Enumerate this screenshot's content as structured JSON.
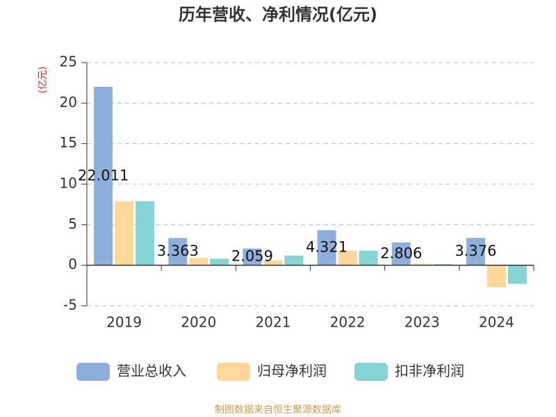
{
  "chart_data": {
    "type": "bar",
    "title": "历年营收、净利情况(亿元)",
    "y_label": "(亿元)",
    "categories": [
      "2019",
      "2020",
      "2021",
      "2022",
      "2023",
      "2024"
    ],
    "series": [
      {
        "name": "营业总收入",
        "color": "#8eaedb",
        "values": [
          22.011,
          3.363,
          2.059,
          4.321,
          2.806,
          3.376
        ],
        "show_labels": true
      },
      {
        "name": "归母净利润",
        "color": "#fdd899",
        "values": [
          7.9,
          0.9,
          0.6,
          1.8,
          0.2,
          -2.7
        ]
      },
      {
        "name": "扣非净利润",
        "color": "#86d4d6",
        "values": [
          7.9,
          0.8,
          1.2,
          1.8,
          0.15,
          -2.3
        ]
      }
    ],
    "ylim": [
      -5,
      25
    ],
    "yticks": [
      -5,
      0,
      5,
      10,
      15,
      20,
      25
    ],
    "grid": true,
    "source": "制图数据来自恒生聚源数据库"
  }
}
